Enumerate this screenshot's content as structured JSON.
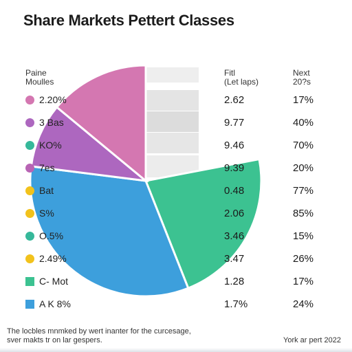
{
  "chart_data": {
    "type": "pie",
    "title": "Share Markets Pettert Classes",
    "slices": [
      {
        "label": "2.20%",
        "value": 14,
        "color": "#d477b1"
      },
      {
        "label": "3 Bas",
        "value": 9,
        "color": "#ad67bf"
      },
      {
        "label": "KO%",
        "value": 0,
        "color": "#36b89a"
      },
      {
        "label": "7es",
        "value": 0,
        "color": "#b864b4"
      },
      {
        "label": "Bat",
        "value": 0,
        "color": "#f2c21c"
      },
      {
        "label": "S%",
        "value": 0,
        "color": "#f2c21c"
      },
      {
        "label": "O.5%",
        "value": 0,
        "color": "#36b89a"
      },
      {
        "label": "2.49%",
        "value": 0,
        "color": "#f2c21c"
      },
      {
        "label": "C- Mot",
        "value": 0,
        "color": "#3cc291"
      },
      {
        "label": "A K 8%",
        "value": 0,
        "color": "#3d9fdc"
      }
    ],
    "visible_wedges": [
      {
        "name": "pink",
        "value": 14,
        "color": "#d477b1"
      },
      {
        "name": "purple",
        "value": 9,
        "color": "#ad67bf"
      },
      {
        "name": "blue",
        "value": 33,
        "color": "#3d9fdc"
      },
      {
        "name": "green",
        "value": 22,
        "color": "#3cc291"
      },
      {
        "name": "gray",
        "value": 22,
        "color": "#e3e3e3"
      }
    ],
    "legend_header": [
      "Paine",
      "Moulles"
    ],
    "columns": [
      {
        "header": [
          "Fitl",
          "(Let laps)"
        ],
        "values": [
          "2.62",
          "9.77",
          "9.46",
          "9.39",
          "0.48",
          "2.06",
          "3.46",
          "3.47",
          "1.28",
          "1.7%"
        ]
      },
      {
        "header": [
          "Next",
          "20?s"
        ],
        "values": [
          "17%",
          "40%",
          "70%",
          "20%",
          "77%",
          "85%",
          "15%",
          "26%",
          "17%",
          "24%"
        ]
      }
    ]
  },
  "footnote": [
    "The locbles mnmked by wert inanter for the curcesage,",
    "sver makts tr on lar gespers."
  ],
  "footnote_right": "York ar pert 2022"
}
